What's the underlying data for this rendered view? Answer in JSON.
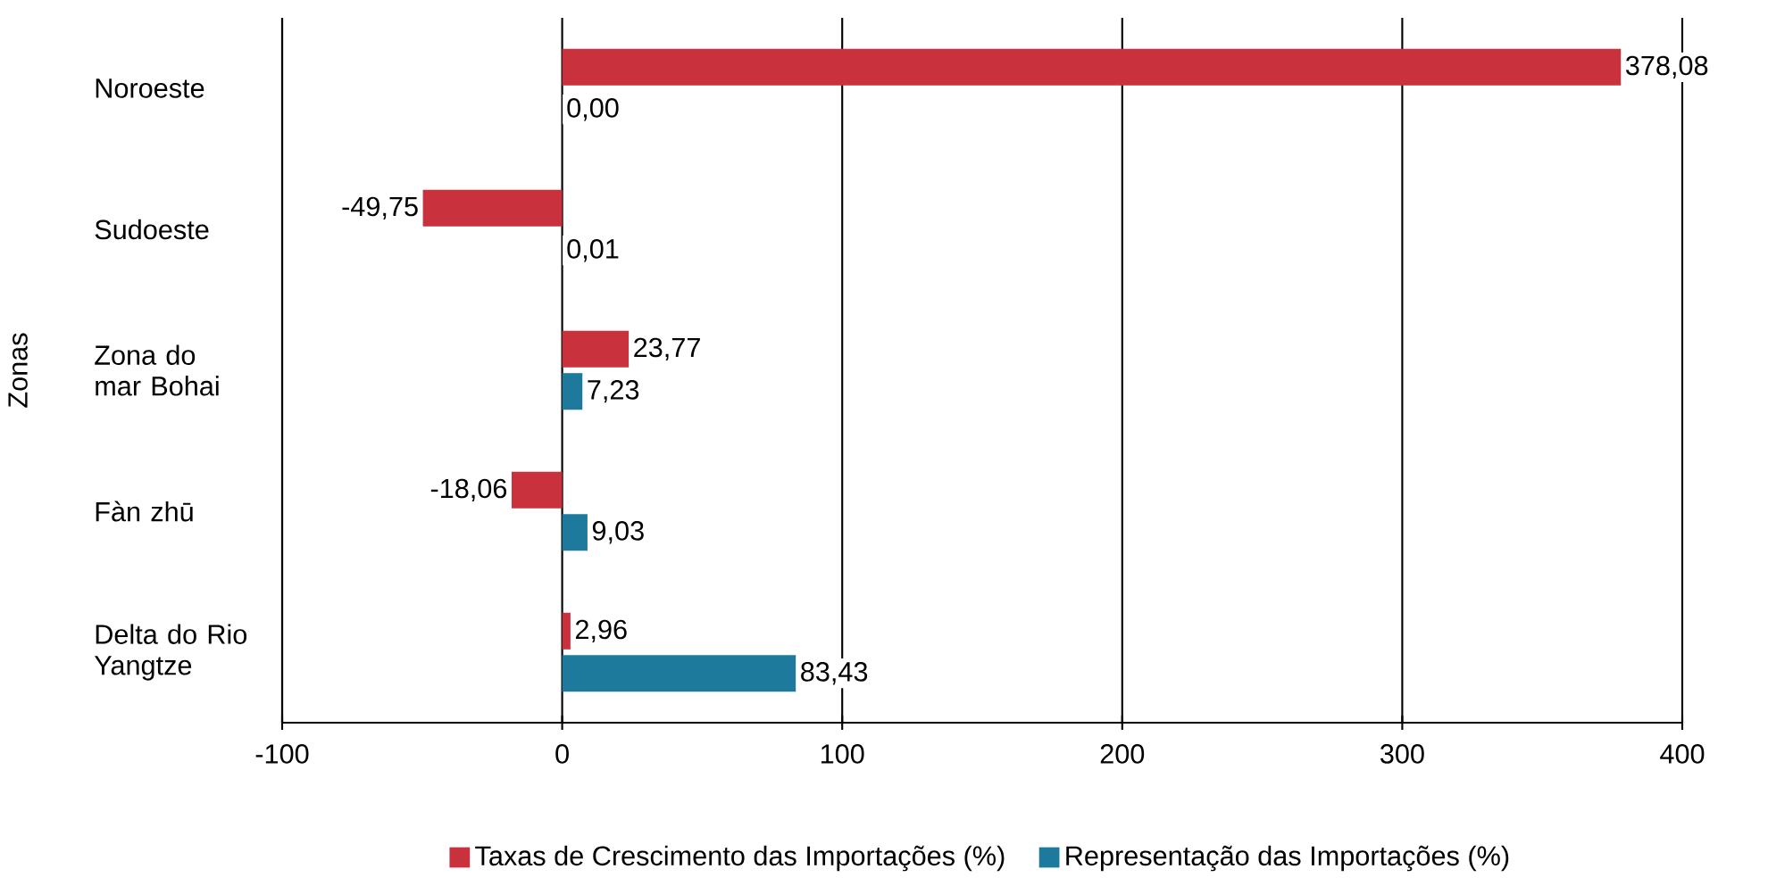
{
  "chart_data": {
    "type": "bar",
    "orientation": "horizontal",
    "ylabel": "Zonas",
    "categories": [
      "Noroeste",
      "Sudoeste",
      "Zona do mar Bohai",
      "Fàn zhū",
      "Delta do Rio Yangtze"
    ],
    "series": [
      {
        "name": "Taxas de Crescimento das Importações (%)",
        "color": "#c9323c",
        "values": [
          378.08,
          -49.75,
          23.77,
          -18.06,
          2.96
        ],
        "value_labels": [
          "378,08",
          "-49,75",
          "23,77",
          "-18,06",
          "2,96"
        ]
      },
      {
        "name": "Representação das Importações (%)",
        "color": "#1e7a9c",
        "values": [
          0.0,
          0.01,
          7.23,
          9.03,
          83.43
        ],
        "value_labels": [
          "0,00",
          "0,01",
          "7,23",
          "9,03",
          "83,43"
        ]
      }
    ],
    "xlim": [
      -100,
      400
    ],
    "xticks": [
      -100,
      0,
      100,
      200,
      300,
      400
    ],
    "grid": "x",
    "legend": "bottom"
  }
}
